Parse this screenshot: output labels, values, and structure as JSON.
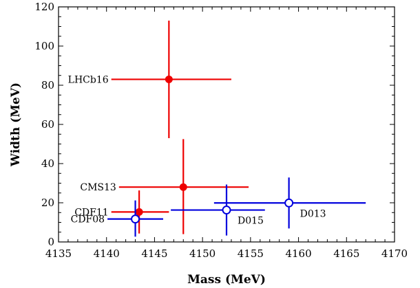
{
  "chart_data": {
    "type": "scatter",
    "title": "",
    "xlabel": "Mass (MeV)",
    "ylabel": "Width (MeV)",
    "xlim": [
      4135,
      4170
    ],
    "ylim": [
      0,
      120
    ],
    "xticks": [
      4135,
      4140,
      4145,
      4150,
      4155,
      4160,
      4165,
      4170
    ],
    "yticks": [
      0,
      20,
      40,
      60,
      80,
      100,
      120
    ],
    "grid": false,
    "legend": "none",
    "colors": {
      "red": "#ee0000",
      "blue": "#0000dd"
    },
    "points": [
      {
        "label": "LHCb16",
        "x": 4146.5,
        "xerr": [
          6.0,
          6.5
        ],
        "y": 83,
        "yerr": [
          30,
          30
        ],
        "color": "red",
        "marker": "filled",
        "label_side": "left"
      },
      {
        "label": "CMS13",
        "x": 4148.0,
        "xerr": [
          6.7,
          6.8
        ],
        "y": 28,
        "yerr": [
          24,
          24.5
        ],
        "color": "red",
        "marker": "filled",
        "label_side": "left"
      },
      {
        "label": "CDF11",
        "x": 4143.4,
        "xerr": [
          2.9,
          3.1
        ],
        "y": 15.3,
        "yerr": [
          11,
          11
        ],
        "color": "red",
        "marker": "filled",
        "label_side": "left"
      },
      {
        "label": "CDF08",
        "x": 4143.0,
        "xerr": [
          2.9,
          2.9
        ],
        "y": 11.7,
        "yerr": [
          9,
          9.5
        ],
        "color": "blue",
        "marker": "open",
        "label_side": "left"
      },
      {
        "label": "D015",
        "x": 4152.5,
        "xerr": [
          5.8,
          4.0
        ],
        "y": 16.3,
        "yerr": [
          13,
          13
        ],
        "color": "blue",
        "marker": "open",
        "label_side": "right_below"
      },
      {
        "label": "D013",
        "x": 4159.0,
        "xerr": [
          7.8,
          8.0
        ],
        "y": 19.9,
        "yerr": [
          13,
          13
        ],
        "color": "blue",
        "marker": "open",
        "label_side": "right_below"
      }
    ]
  }
}
